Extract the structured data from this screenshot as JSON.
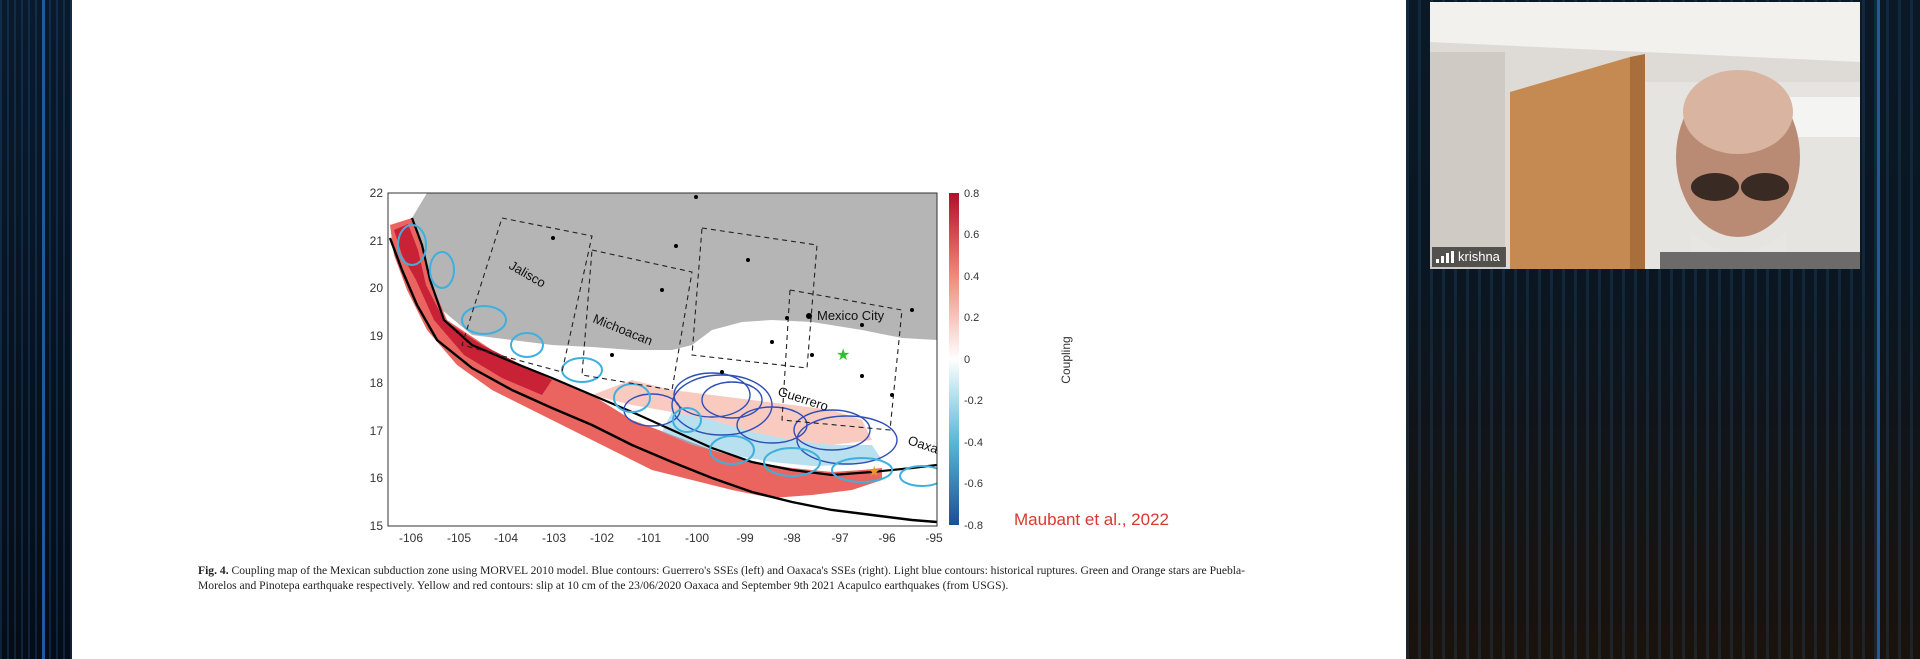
{
  "slide": {
    "map": {
      "lat_ticks": [
        "22",
        "21",
        "20",
        "19",
        "18",
        "17",
        "16",
        "15"
      ],
      "lon_ticks": [
        "-106",
        "-105",
        "-104",
        "-103",
        "-102",
        "-101",
        "-100",
        "-99",
        "-98",
        "-97",
        "-96",
        "-95"
      ],
      "region_labels": [
        "Jalisco",
        "Michoacan",
        "Mexico City",
        "Guerrero",
        "Oaxaca"
      ],
      "colorbar_ticks": [
        "0.8",
        "0.6",
        "0.4",
        "0.2",
        "0",
        "-0.2",
        "-0.4",
        "-0.6",
        "-0.8"
      ],
      "colorbar_label": "Coupling",
      "colors": {
        "high": "#c8152d",
        "mid": "#ffffff",
        "low": "#1a5fa8",
        "land": "#b5b5b5"
      }
    },
    "caption_fig": "Fig. 4.",
    "caption_text": "Coupling map of the Mexican subduction zone using MORVEL 2010 model. Blue contours: Guerrero's SSEs (left) and Oaxaca's SSEs (right). Light blue contours: historical ruptures. Green and Orange stars are Puebla-Morelos and Pinotepa earthquake respectively. Yellow and red contours: slip at 10 cm of the 23/06/2020 Oaxaca and September 9th 2021 Acapulco earthquakes (from USGS).",
    "credit": "Maubant et al., 2022"
  },
  "participant": {
    "name": "krishna",
    "signal_icon": "signal-bars-icon"
  }
}
